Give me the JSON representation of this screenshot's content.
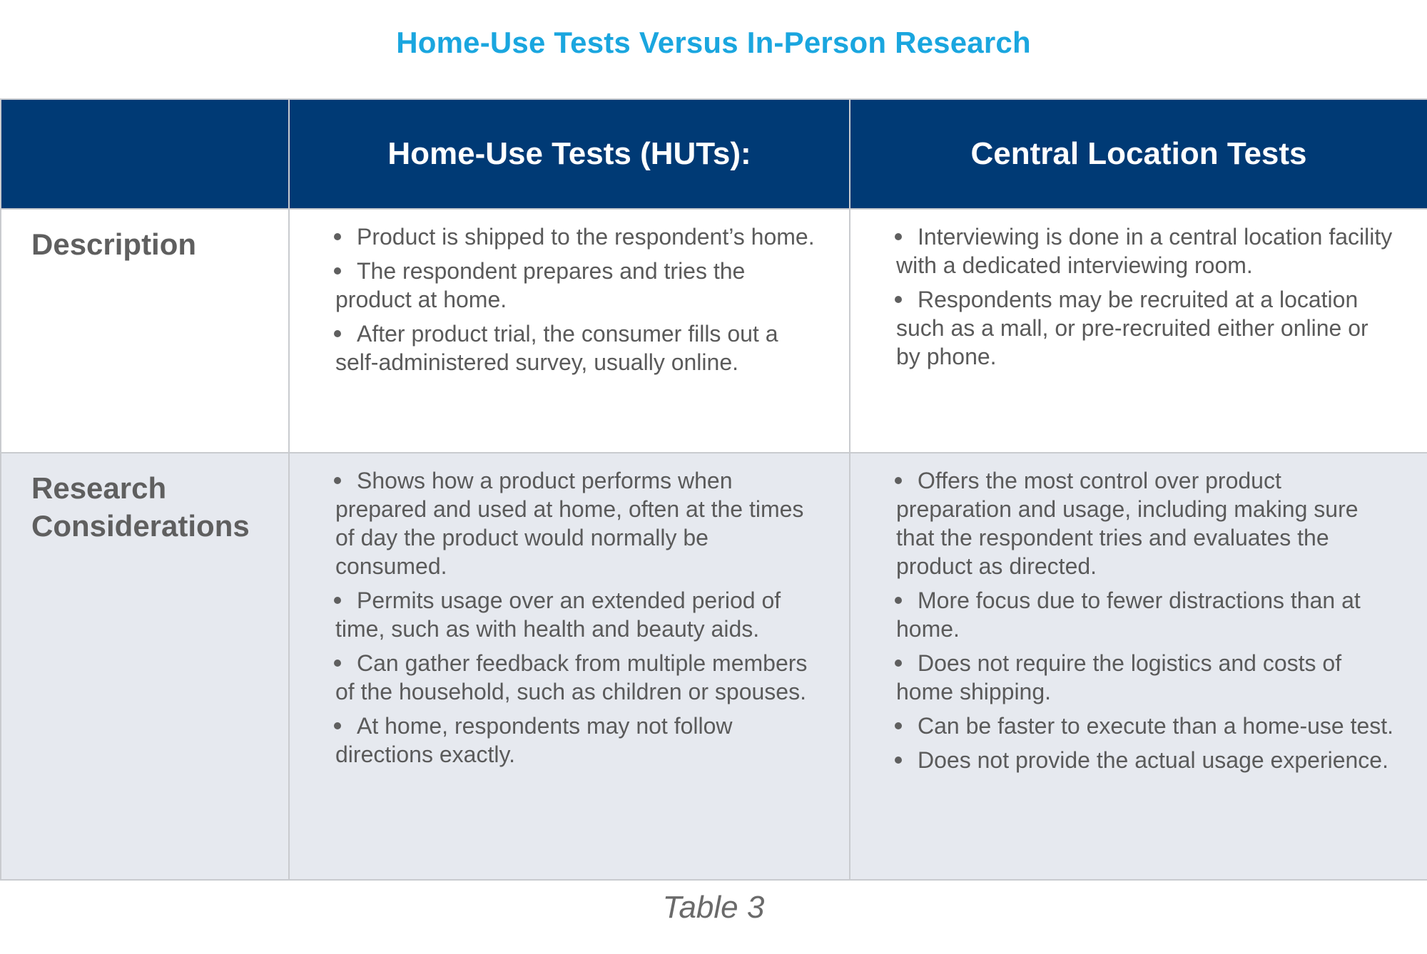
{
  "title": "Home-Use Tests Versus In-Person Research",
  "colors": {
    "title": "#1aa6df",
    "header_bg": "#003a75",
    "row_alt_bg": "#e6e9ef"
  },
  "table": {
    "headers": [
      "",
      "Home-Use Tests (HUTs):",
      "Central Location Tests"
    ],
    "rows": [
      {
        "label": "Description",
        "huts": [
          "Product is shipped to the respondent’s home.",
          "The respondent prepares and tries the product at home.",
          "After product trial, the consumer fills out a self-administered survey, usually online."
        ],
        "clt": [
          "Interviewing is done in a central location facility with a dedicated interviewing room.",
          "Respondents may be recruited at a location such as a mall, or pre-recruited either online or by phone."
        ]
      },
      {
        "label": "Research Considerations",
        "huts": [
          "Shows how a product performs when prepared and used at home, often at the times of day the product would normally be consumed.",
          "Permits usage over an extended period of time, such as with health and beauty aids.",
          "Can gather feedback from multiple members of the household, such as children or spouses.",
          "At home, respondents may not follow directions exactly."
        ],
        "clt": [
          "Offers the most control over product preparation and usage, including making sure that the respondent tries and evaluates the product as directed.",
          "More focus due to fewer distractions than at home.",
          "Does not require the logistics and costs of home shipping.",
          "Can be faster to execute than a home-use test.",
          "Does not provide the actual usage experience."
        ]
      }
    ]
  },
  "caption": "Table 3"
}
